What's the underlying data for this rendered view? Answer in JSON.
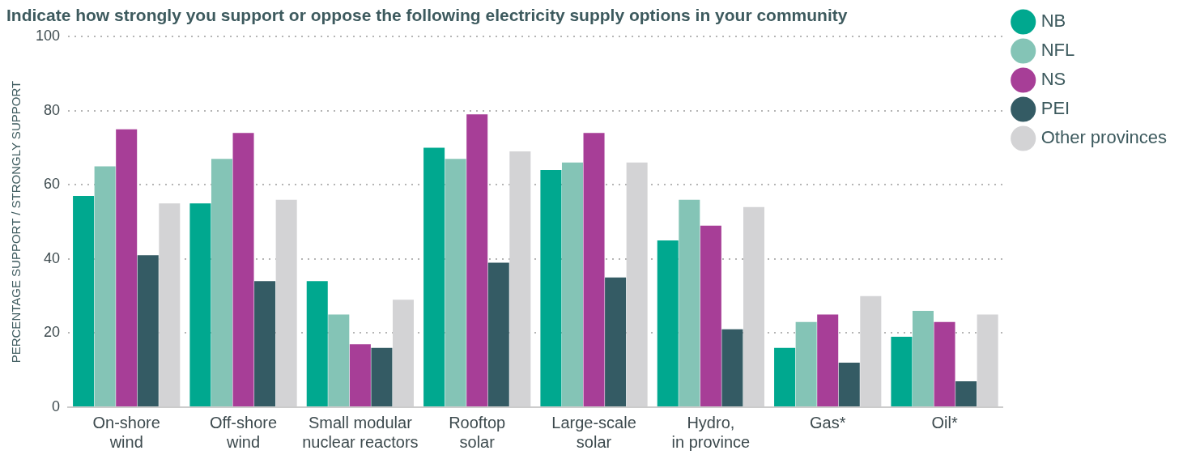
{
  "chart_data": {
    "type": "bar",
    "title": "Indicate how strongly you support or oppose the following electricity supply options in your community",
    "ylabel": "PERCENTAGE SUPPORT / STRONGLY SUPPORT",
    "categories": [
      "On-shore\nwind",
      "Off-shore\nwind",
      "Small modular\nnuclear reactors",
      "Rooftop\nsolar",
      "Large-scale\nsolar",
      "Hydro,\nin province",
      "Gas*",
      "Oil*"
    ],
    "series": [
      {
        "name": "NB",
        "color": "#00a88f",
        "values": [
          57,
          55,
          34,
          70,
          64,
          45,
          16,
          19
        ]
      },
      {
        "name": "NFL",
        "color": "#84c4b6",
        "values": [
          65,
          67,
          25,
          67,
          66,
          56,
          23,
          26
        ]
      },
      {
        "name": "NS",
        "color": "#a73e97",
        "values": [
          75,
          74,
          17,
          79,
          74,
          49,
          25,
          23
        ]
      },
      {
        "name": "PEI",
        "color": "#345b64",
        "values": [
          41,
          34,
          16,
          39,
          35,
          21,
          12,
          7
        ]
      },
      {
        "name": "Other provinces",
        "color": "#d3d3d5",
        "values": [
          55,
          56,
          29,
          69,
          66,
          54,
          30,
          25
        ]
      }
    ],
    "ylim": [
      0,
      100
    ],
    "yticks": [
      0,
      20,
      40,
      60,
      80,
      100
    ],
    "grid": "y",
    "legend": "right"
  }
}
